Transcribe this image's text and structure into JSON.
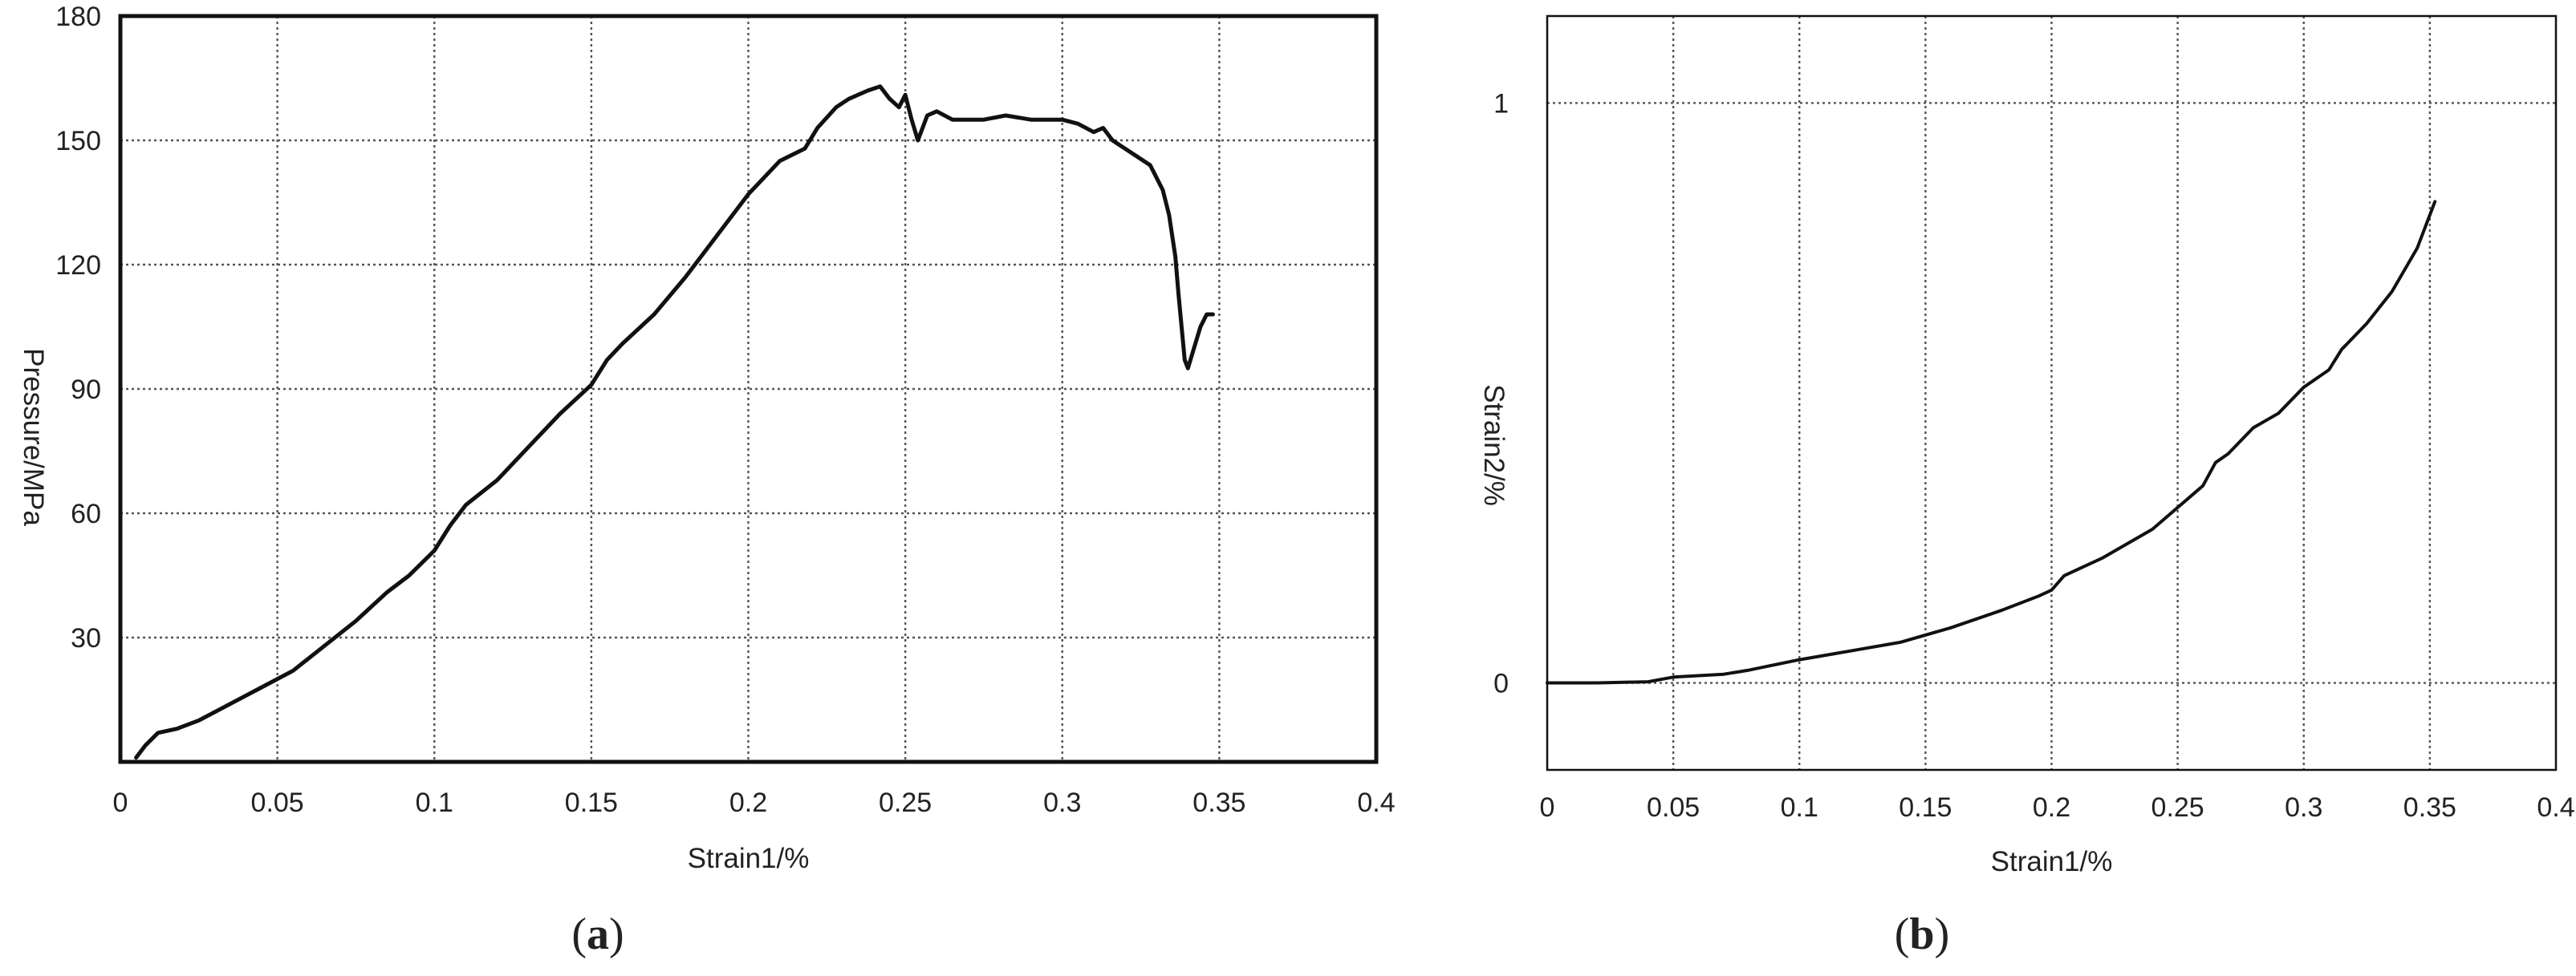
{
  "chart_data": [
    {
      "type": "line",
      "panel_label": "a",
      "xlabel": "Strain1/%",
      "ylabel": "Pressure/MPa",
      "xlim": [
        0,
        0.4
      ],
      "ylim": [
        0,
        180
      ],
      "x_ticks": [
        0,
        0.05,
        0.1,
        0.15,
        0.2,
        0.25,
        0.3,
        0.35,
        0.4
      ],
      "x_tick_labels": [
        "0",
        "0.05",
        "0.1",
        "0.15",
        "0.2",
        "0.25",
        "0.3",
        "0.35",
        "0.4"
      ],
      "y_ticks": [
        30,
        60,
        90,
        120,
        150,
        180
      ],
      "y_tick_labels": [
        "30",
        "60",
        "90",
        "120",
        "150",
        "180"
      ],
      "grid": true,
      "line_color": "#111111",
      "series": [
        {
          "points": [
            [
              0.005,
              1
            ],
            [
              0.008,
              4
            ],
            [
              0.012,
              7
            ],
            [
              0.018,
              8
            ],
            [
              0.025,
              10
            ],
            [
              0.035,
              14
            ],
            [
              0.045,
              18
            ],
            [
              0.055,
              22
            ],
            [
              0.065,
              28
            ],
            [
              0.075,
              34
            ],
            [
              0.085,
              41
            ],
            [
              0.092,
              45
            ],
            [
              0.1,
              51
            ],
            [
              0.105,
              57
            ],
            [
              0.11,
              62
            ],
            [
              0.12,
              68
            ],
            [
              0.13,
              76
            ],
            [
              0.14,
              84
            ],
            [
              0.15,
              91
            ],
            [
              0.155,
              97
            ],
            [
              0.16,
              101
            ],
            [
              0.17,
              108
            ],
            [
              0.18,
              117
            ],
            [
              0.19,
              127
            ],
            [
              0.2,
              137
            ],
            [
              0.21,
              145
            ],
            [
              0.218,
              148
            ],
            [
              0.222,
              153
            ],
            [
              0.228,
              158
            ],
            [
              0.232,
              160
            ],
            [
              0.238,
              162
            ],
            [
              0.242,
              163
            ],
            [
              0.245,
              160
            ],
            [
              0.248,
              158
            ],
            [
              0.25,
              161
            ],
            [
              0.252,
              155
            ],
            [
              0.254,
              150
            ],
            [
              0.257,
              156
            ],
            [
              0.26,
              157
            ],
            [
              0.265,
              155
            ],
            [
              0.275,
              155
            ],
            [
              0.282,
              156
            ],
            [
              0.29,
              155
            ],
            [
              0.3,
              155
            ],
            [
              0.305,
              154
            ],
            [
              0.31,
              152
            ],
            [
              0.313,
              153
            ],
            [
              0.316,
              150
            ],
            [
              0.322,
              147
            ],
            [
              0.328,
              144
            ],
            [
              0.332,
              138
            ],
            [
              0.334,
              132
            ],
            [
              0.336,
              122
            ],
            [
              0.337,
              113
            ],
            [
              0.338,
              105
            ],
            [
              0.339,
              97
            ],
            [
              0.34,
              95
            ],
            [
              0.342,
              100
            ],
            [
              0.344,
              105
            ],
            [
              0.346,
              108
            ],
            [
              0.348,
              108
            ]
          ]
        }
      ]
    },
    {
      "type": "line",
      "panel_label": "b",
      "xlabel": "Strain1/%",
      "ylabel": "Strain2/%",
      "xlim": [
        0,
        0.4
      ],
      "ylim": [
        -0.15,
        1.15
      ],
      "x_ticks": [
        0,
        0.05,
        0.1,
        0.15,
        0.2,
        0.25,
        0.3,
        0.35,
        0.4
      ],
      "x_tick_labels": [
        "0",
        "0.05",
        "0.1",
        "0.15",
        "0.2",
        "0.25",
        "0.3",
        "0.35",
        "0.4"
      ],
      "y_ticks": [
        0,
        1
      ],
      "y_tick_labels": [
        "0",
        "1"
      ],
      "grid": true,
      "line_color": "#111111",
      "series": [
        {
          "points": [
            [
              0.0,
              0.0
            ],
            [
              0.02,
              0.0
            ],
            [
              0.04,
              0.002
            ],
            [
              0.05,
              0.01
            ],
            [
              0.07,
              0.015
            ],
            [
              0.08,
              0.022
            ],
            [
              0.1,
              0.04
            ],
            [
              0.12,
              0.055
            ],
            [
              0.14,
              0.07
            ],
            [
              0.16,
              0.095
            ],
            [
              0.18,
              0.125
            ],
            [
              0.195,
              0.15
            ],
            [
              0.2,
              0.16
            ],
            [
              0.205,
              0.185
            ],
            [
              0.22,
              0.215
            ],
            [
              0.24,
              0.265
            ],
            [
              0.26,
              0.34
            ],
            [
              0.265,
              0.38
            ],
            [
              0.27,
              0.395
            ],
            [
              0.28,
              0.44
            ],
            [
              0.29,
              0.465
            ],
            [
              0.3,
              0.51
            ],
            [
              0.31,
              0.54
            ],
            [
              0.315,
              0.575
            ],
            [
              0.325,
              0.62
            ],
            [
              0.335,
              0.675
            ],
            [
              0.345,
              0.75
            ],
            [
              0.352,
              0.83
            ]
          ]
        }
      ]
    }
  ]
}
